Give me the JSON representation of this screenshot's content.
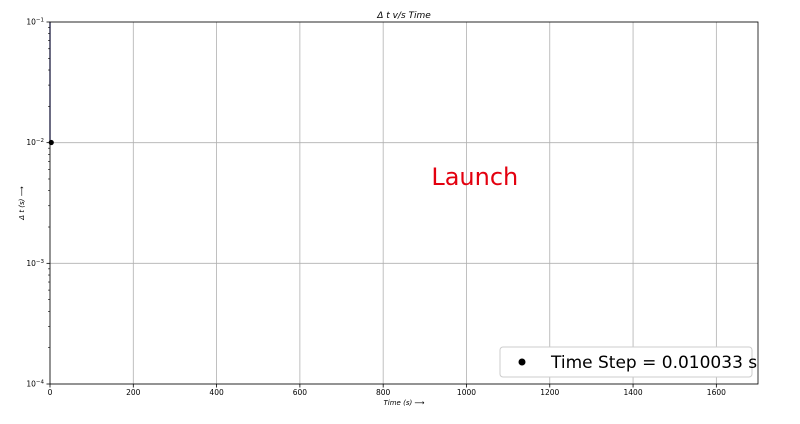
{
  "chart_data": {
    "type": "line",
    "title": "Δ t v/s Time",
    "xlabel": "Time (s) ⟶",
    "ylabel": "Δ t (s) ⟶",
    "xlim": [
      0,
      1700
    ],
    "ylim": [
      0.0001,
      0.1
    ],
    "yscale": "log",
    "grid": true,
    "x_ticks": [
      0,
      200,
      400,
      600,
      800,
      1000,
      1200,
      1400,
      1600
    ],
    "y_ticks": [
      {
        "value": 0.1,
        "base": "10",
        "exp": "−1"
      },
      {
        "value": 0.01,
        "base": "10",
        "exp": "−2"
      },
      {
        "value": 0.001,
        "base": "10",
        "exp": "−3"
      },
      {
        "value": 0.0001,
        "base": "10",
        "exp": "−4"
      }
    ],
    "series": [
      {
        "name": "Time Step = 0.010033 s",
        "x": [
          0,
          0
        ],
        "y": [
          0.1,
          0.010033
        ],
        "color": "#1f1f8f"
      }
    ],
    "marker": {
      "x": 3,
      "y": 0.010033,
      "color": "#000000"
    },
    "annotation": {
      "text": "Launch",
      "color": "#e3000f"
    },
    "legend": {
      "entry": "Time Step = 0.010033 s",
      "position": "bottom-right"
    }
  }
}
